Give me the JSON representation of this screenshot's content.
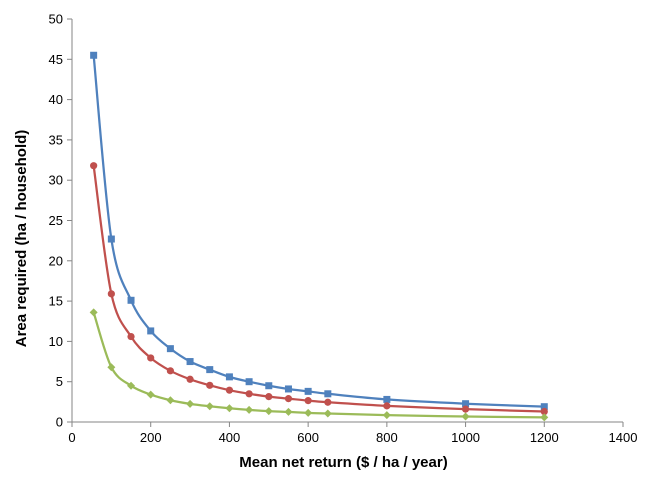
{
  "chart_data": {
    "type": "line",
    "xlabel": "Mean net return ($ / ha / year)",
    "ylabel": "Area required (ha / household)",
    "xlim": [
      0,
      1400
    ],
    "ylim": [
      0,
      50
    ],
    "x_ticks": [
      "0",
      "200",
      "400",
      "600",
      "800",
      "1000",
      "1200",
      "1400"
    ],
    "y_ticks": [
      "0",
      "5",
      "10",
      "15",
      "20",
      "25",
      "30",
      "35",
      "40",
      "45",
      "50"
    ],
    "grid": false,
    "legend": "none",
    "x": [
      55,
      100,
      150,
      200,
      250,
      300,
      350,
      400,
      450,
      500,
      550,
      600,
      650,
      800,
      1000,
      1200
    ],
    "series": [
      {
        "color": "#4F81BD",
        "marker": "square",
        "values": [
          45.5,
          22.7,
          15.1,
          11.3,
          9.1,
          7.5,
          6.5,
          5.6,
          5.0,
          4.5,
          4.1,
          3.8,
          3.5,
          2.8,
          2.27,
          1.9
        ]
      },
      {
        "color": "#C0504D",
        "marker": "circle",
        "values": [
          31.8,
          15.9,
          10.6,
          7.95,
          6.35,
          5.3,
          4.55,
          3.95,
          3.5,
          3.15,
          2.9,
          2.65,
          2.45,
          2.0,
          1.6,
          1.3
        ]
      },
      {
        "color": "#9BBB59",
        "marker": "diamond",
        "values": [
          13.6,
          6.8,
          4.5,
          3.4,
          2.7,
          2.25,
          1.95,
          1.7,
          1.5,
          1.35,
          1.25,
          1.13,
          1.05,
          0.85,
          0.68,
          0.57
        ]
      }
    ]
  }
}
